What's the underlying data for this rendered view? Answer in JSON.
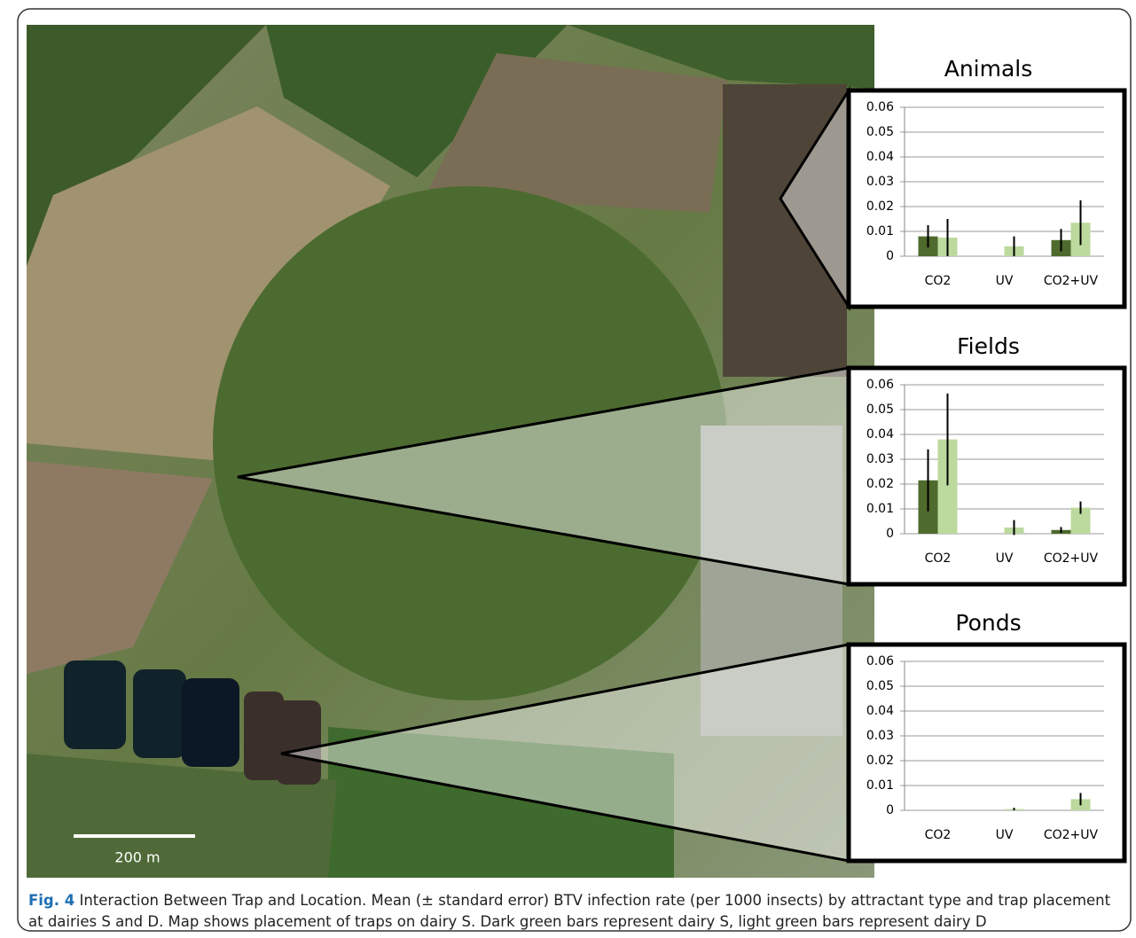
{
  "chart_data": [
    {
      "type": "bar",
      "title": "Animals",
      "categories": [
        "CO2",
        "UV",
        "CO2+UV"
      ],
      "series": [
        {
          "color": "#4e6a2c",
          "values": [
            0.008,
            0,
            0.0065
          ],
          "errors": [
            0.0045,
            0,
            0.0045
          ]
        },
        {
          "color": "#bcd99e",
          "values": [
            0.0075,
            0.004,
            0.0135
          ],
          "errors": [
            0.0075,
            0.004,
            0.009
          ]
        }
      ],
      "ylim": [
        0,
        0.06
      ],
      "yticks": [
        0,
        0.01,
        0.02,
        0.03,
        0.04,
        0.05,
        0.06
      ],
      "grid": true
    },
    {
      "type": "bar",
      "title": "Fields",
      "categories": [
        "CO2",
        "UV",
        "CO2+UV"
      ],
      "series": [
        {
          "color": "#4e6a2c",
          "values": [
            0.0215,
            0,
            0.0015
          ],
          "errors": [
            0.0125,
            0,
            0.0012
          ]
        },
        {
          "color": "#bcd99e",
          "values": [
            0.038,
            0.0025,
            0.0105
          ],
          "errors": [
            0.0185,
            0.003,
            0.0025
          ]
        }
      ],
      "ylim": [
        0,
        0.06
      ],
      "yticks": [
        0,
        0.01,
        0.02,
        0.03,
        0.04,
        0.05,
        0.06
      ],
      "grid": true
    },
    {
      "type": "bar",
      "title": "Ponds",
      "categories": [
        "CO2",
        "UV",
        "CO2+UV"
      ],
      "series": [
        {
          "color": "#4e6a2c",
          "values": [
            0,
            0,
            0
          ],
          "errors": [
            0,
            0,
            0
          ]
        },
        {
          "color": "#bcd99e",
          "values": [
            0,
            0.0005,
            0.0045
          ],
          "errors": [
            0,
            0.0005,
            0.0025
          ]
        }
      ],
      "ylim": [
        0,
        0.06
      ],
      "yticks": [
        0,
        0.01,
        0.02,
        0.03,
        0.04,
        0.05,
        0.06
      ],
      "grid": true
    }
  ],
  "map": {
    "scale_label": "200 m"
  },
  "caption": {
    "label": "Fig. 4",
    "text": "Interaction Between Trap and Location. Mean (± standard error) BTV infection rate (per 1000 insects) by attractant type and trap placement at dairies S and D. Map shows placement of traps on dairy S. Dark green bars represent dairy S, light green bars represent dairy D"
  }
}
